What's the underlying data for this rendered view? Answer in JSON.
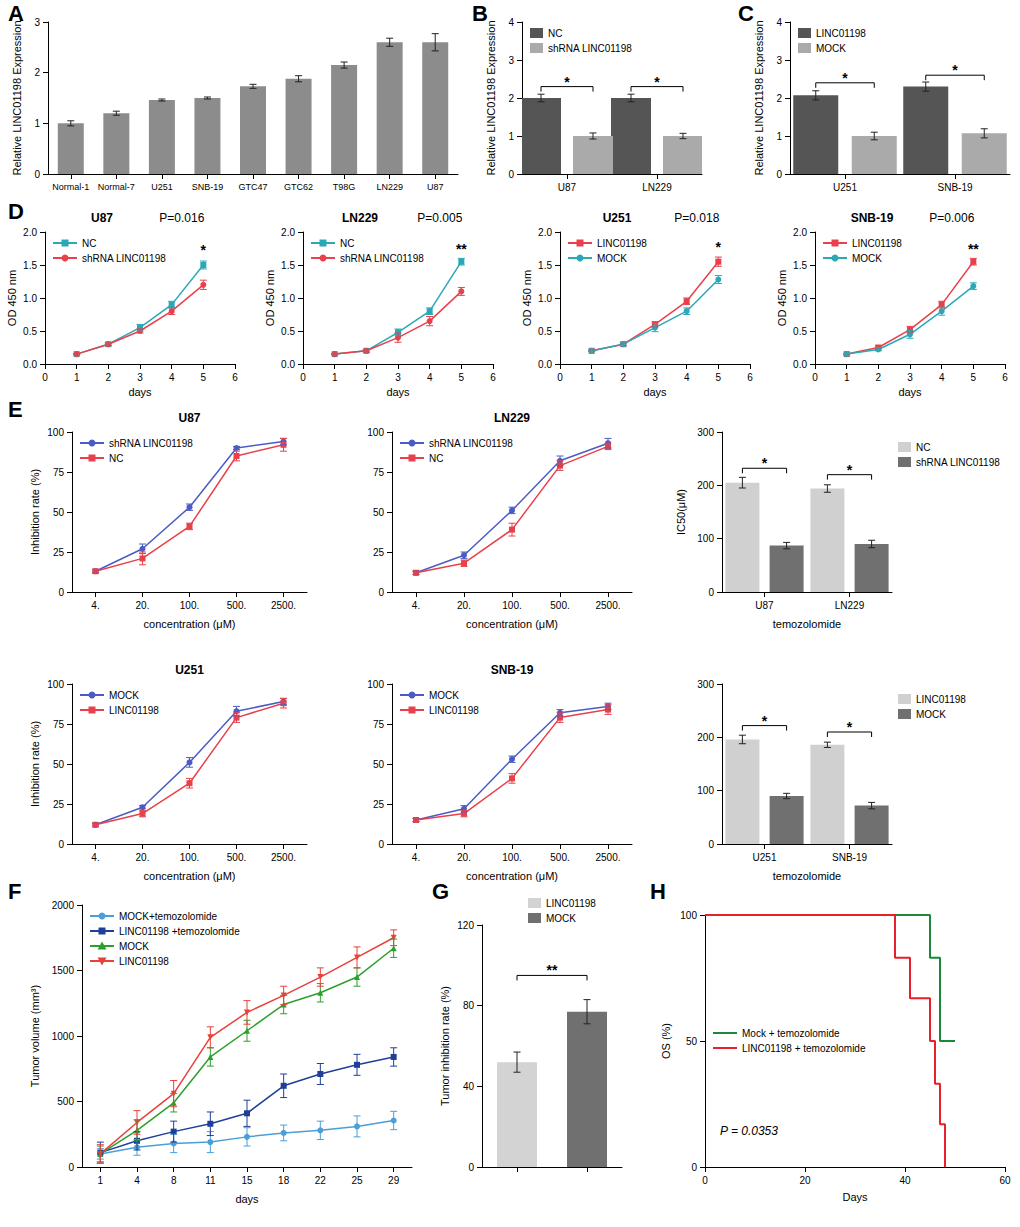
{
  "chart_data": [
    {
      "panel": "A",
      "type": "bar",
      "y_label": "Relative LINC01198 Expression",
      "categories": [
        "Normal-1",
        "Normal-7",
        "U251",
        "SNB-19",
        "GTC47",
        "GTC62",
        "T98G",
        "LN229",
        "U87"
      ],
      "values": [
        1.0,
        1.2,
        1.46,
        1.5,
        1.73,
        1.88,
        2.15,
        2.6,
        2.6
      ],
      "errors": [
        0.05,
        0.04,
        0.02,
        0.02,
        0.04,
        0.06,
        0.06,
        0.08,
        0.17
      ],
      "color": "#8c8c8c",
      "ylim": [
        0,
        3
      ],
      "yticks": [
        0,
        1,
        2,
        3
      ]
    },
    {
      "panel": "B",
      "type": "bar",
      "y_label": "Relative LINC01198 Expression",
      "categories": [
        "U87",
        "LN229"
      ],
      "legend": "upper left",
      "series": [
        {
          "name": "NC",
          "color": "#555555",
          "values": [
            2.0,
            2.0
          ],
          "errors": [
            0.1,
            0.1
          ]
        },
        {
          "name": "shRNA LINC01198",
          "color": "#aaaaaa",
          "values": [
            1.0,
            1.0
          ],
          "errors": [
            0.08,
            0.07
          ]
        }
      ],
      "ylim": [
        0,
        4
      ],
      "yticks": [
        0,
        1,
        2,
        3,
        4
      ],
      "annotations": [
        {
          "text": "*",
          "category": "U87",
          "y": 2.3
        },
        {
          "text": "*",
          "category": "LN229",
          "y": 2.3
        }
      ]
    },
    {
      "panel": "C",
      "type": "bar",
      "y_label": "Relative LINC01198 Expression",
      "categories": [
        "U251",
        "SNB-19"
      ],
      "legend": "upper left",
      "series": [
        {
          "name": "LINC01198",
          "color": "#555555",
          "values": [
            2.07,
            2.3
          ],
          "errors": [
            0.12,
            0.12
          ]
        },
        {
          "name": "MOCK",
          "color": "#aaaaaa",
          "values": [
            1.0,
            1.07
          ],
          "errors": [
            0.1,
            0.12
          ]
        }
      ],
      "ylim": [
        0,
        4
      ],
      "yticks": [
        0,
        1,
        2,
        3,
        4
      ],
      "annotations": [
        {
          "text": "*",
          "category": "U251",
          "y": 2.4
        },
        {
          "text": "*",
          "category": "SNB-19",
          "y": 2.6
        }
      ]
    },
    {
      "panel": "D",
      "type": "line",
      "title": "U87",
      "subtitle": "P=0.016",
      "x_label": "days",
      "y_label": "OD 450 nm",
      "x": [
        1,
        2,
        3,
        4,
        5
      ],
      "xlim": [
        0,
        6
      ],
      "xticks": [
        0,
        1,
        2,
        3,
        4,
        5,
        6
      ],
      "ylim": [
        0,
        2
      ],
      "yticks": [
        {
          "value": 0,
          "label": "0.0"
        },
        0.5,
        {
          "value": 1,
          "label": "1.0"
        },
        1.5,
        {
          "value": 2,
          "label": "2.0"
        }
      ],
      "legend": "upper left",
      "series": [
        {
          "name": "NC",
          "color": "#2aa8b8",
          "marker": "square",
          "values": [
            0.15,
            0.3,
            0.55,
            0.9,
            1.5
          ],
          "errors": [
            0.01,
            0.02,
            0.05,
            0.05,
            0.06
          ]
        },
        {
          "name": "shRNA LINC01198",
          "color": "#e8414b",
          "marker": "circle",
          "values": [
            0.15,
            0.3,
            0.5,
            0.8,
            1.2
          ],
          "errors": [
            0.01,
            0.02,
            0.03,
            0.05,
            0.07
          ]
        }
      ],
      "annotations": [
        {
          "text": "*",
          "x": 5,
          "y": 1.62
        }
      ]
    },
    {
      "type": "line",
      "title": "LN229",
      "subtitle": "P=0.005",
      "x_label": "days",
      "y_label": "OD 450 nm",
      "x": [
        1,
        2,
        3,
        4,
        5
      ],
      "xlim": [
        0,
        6
      ],
      "xticks": [
        0,
        1,
        2,
        3,
        4,
        5,
        6
      ],
      "ylim": [
        0,
        2
      ],
      "yticks": [
        {
          "value": 0,
          "label": "0.0"
        },
        0.5,
        {
          "value": 1,
          "label": "1.0"
        },
        1.5,
        {
          "value": 2,
          "label": "2.0"
        }
      ],
      "legend": "upper left",
      "series": [
        {
          "name": "NC",
          "color": "#2aa8b8",
          "marker": "square",
          "values": [
            0.15,
            0.2,
            0.48,
            0.8,
            1.55
          ],
          "errors": [
            0.01,
            0.02,
            0.05,
            0.05,
            0.05
          ]
        },
        {
          "name": "shRNA LINC01198",
          "color": "#e8414b",
          "marker": "circle",
          "values": [
            0.15,
            0.2,
            0.4,
            0.65,
            1.1
          ],
          "errors": [
            0.01,
            0.02,
            0.07,
            0.07,
            0.06
          ]
        }
      ],
      "annotations": [
        {
          "text": "**",
          "x": 5,
          "y": 1.64
        }
      ]
    },
    {
      "type": "line",
      "title": "U251",
      "subtitle": "P=0.018",
      "x_label": "days",
      "x": [
        1,
        2,
        3,
        4,
        5
      ],
      "xlim": [
        0,
        6
      ],
      "xticks": [
        0,
        1,
        2,
        3,
        4,
        5,
        6
      ],
      "ylim": [
        0,
        2
      ],
      "yticks": [
        {
          "value": 0,
          "label": "0.0"
        },
        0.5,
        {
          "value": 1,
          "label": "1.0"
        },
        1.5,
        {
          "value": 2,
          "label": "2.0"
        }
      ],
      "legend": "upper left",
      "y_label": "OD 450 nm",
      "series": [
        {
          "name": "LINC01198",
          "color": "#e8414b",
          "marker": "square",
          "values": [
            0.2,
            0.3,
            0.6,
            0.95,
            1.55
          ],
          "errors": [
            0.01,
            0.02,
            0.04,
            0.05,
            0.07
          ]
        },
        {
          "name": "MOCK",
          "color": "#2aa8b8",
          "marker": "circle",
          "values": [
            0.2,
            0.3,
            0.55,
            0.8,
            1.28
          ],
          "errors": [
            0.01,
            0.02,
            0.06,
            0.05,
            0.06
          ]
        }
      ],
      "annotations": [
        {
          "text": "*",
          "x": 5,
          "y": 1.66
        }
      ]
    },
    {
      "type": "line",
      "title": "SNB-19",
      "subtitle": "P=0.006",
      "x_label": "days",
      "y_label": "OD 450 nm",
      "x": [
        1,
        2,
        3,
        4,
        5
      ],
      "xlim": [
        0,
        6
      ],
      "xticks": [
        0,
        1,
        2,
        3,
        4,
        5,
        6
      ],
      "ylim": [
        0,
        2
      ],
      "yticks": [
        {
          "value": 0,
          "label": "0.0"
        },
        0.5,
        {
          "value": 1,
          "label": "1.0"
        },
        1.5,
        {
          "value": 2,
          "label": "2.0"
        }
      ],
      "legend": "upper left",
      "series": [
        {
          "name": "LINC01198",
          "color": "#e8414b",
          "marker": "square",
          "values": [
            0.15,
            0.25,
            0.52,
            0.9,
            1.55
          ],
          "errors": [
            0.01,
            0.02,
            0.05,
            0.05,
            0.05
          ]
        },
        {
          "name": "MOCK",
          "color": "#2aa8b8",
          "marker": "circle",
          "values": [
            0.15,
            0.22,
            0.45,
            0.8,
            1.18
          ],
          "errors": [
            0.01,
            0.02,
            0.06,
            0.06,
            0.05
          ]
        }
      ],
      "annotations": [
        {
          "text": "**",
          "x": 5,
          "y": 1.64
        }
      ]
    },
    {
      "panel": "E",
      "type": "line",
      "title": "U87",
      "x_label": "concentration (μM)",
      "y_label": "Inhibition rate (%)",
      "categories": [
        "4.",
        "20.",
        "100.",
        "500.",
        "2500."
      ],
      "ylim": [
        0,
        100
      ],
      "yticks": [
        0,
        25,
        50,
        75,
        100
      ],
      "legend": "upper left",
      "series": [
        {
          "name": "shRNA LINC01198",
          "color": "#4b5cc4",
          "marker": "circle",
          "values": [
            13,
            27,
            53,
            90,
            94
          ],
          "errors": [
            1,
            3,
            2,
            1,
            2
          ]
        },
        {
          "name": "NC",
          "color": "#e8414b",
          "marker": "square",
          "values": [
            13,
            21,
            41,
            85,
            92
          ],
          "errors": [
            1,
            4,
            2,
            3,
            4
          ]
        }
      ]
    },
    {
      "type": "line",
      "title": "LN229",
      "x_label": "concentration (μM)",
      "categories": [
        "4.",
        "20.",
        "100.",
        "500.",
        "2500."
      ],
      "ylim": [
        0,
        100
      ],
      "yticks": [
        0,
        25,
        50,
        75,
        100
      ],
      "legend": "upper left",
      "series": [
        {
          "name": "shRNA LINC01198",
          "color": "#4b5cc4",
          "marker": "circle",
          "values": [
            12,
            23,
            51,
            82,
            93
          ],
          "errors": [
            1,
            2,
            2,
            3,
            3
          ]
        },
        {
          "name": "NC",
          "color": "#e8414b",
          "marker": "square",
          "values": [
            12,
            18,
            39,
            79,
            91
          ],
          "errors": [
            1,
            2,
            4,
            3,
            2
          ]
        }
      ]
    },
    {
      "type": "bar",
      "x_label": "temozolomide",
      "y_label": "IC50(μM)",
      "categories": [
        "U87",
        "LN229"
      ],
      "legend": "upper right",
      "ylim": [
        0,
        300
      ],
      "yticks": [
        0,
        100,
        200,
        300
      ],
      "series": [
        {
          "name": "NC",
          "color": "#d0d0d0",
          "values": [
            205,
            194
          ],
          "errors": [
            10,
            7
          ]
        },
        {
          "name": "shRNA LINC01198",
          "color": "#707070",
          "values": [
            87,
            90
          ],
          "errors": [
            6,
            7
          ]
        }
      ],
      "annotations": [
        {
          "text": "*",
          "category": "U87",
          "y": 232
        },
        {
          "text": "*",
          "category": "LN229",
          "y": 220
        }
      ]
    },
    {
      "type": "line",
      "title": "U251",
      "x_label": "concentration (μM)",
      "y_label": "Inhibition rate (%)",
      "categories": [
        "4.",
        "20.",
        "100.",
        "500.",
        "2500."
      ],
      "ylim": [
        0,
        100
      ],
      "yticks": [
        0,
        25,
        50,
        75,
        100
      ],
      "legend": "upper left",
      "series": [
        {
          "name": "MOCK",
          "color": "#4b5cc4",
          "marker": "circle",
          "values": [
            12,
            23,
            51,
            83,
            89
          ],
          "errors": [
            1,
            1,
            3,
            3,
            2
          ]
        },
        {
          "name": "LINC01198",
          "color": "#e8414b",
          "marker": "square",
          "values": [
            12,
            19,
            38,
            79,
            88
          ],
          "errors": [
            1,
            2,
            3,
            3,
            3
          ]
        }
      ]
    },
    {
      "type": "line",
      "title": "SNB-19",
      "x_label": "concentration (μM)",
      "categories": [
        "4.",
        "20.",
        "100.",
        "500.",
        "2500."
      ],
      "ylim": [
        0,
        100
      ],
      "yticks": [
        0,
        25,
        50,
        75,
        100
      ],
      "legend": "upper left",
      "series": [
        {
          "name": "MOCK",
          "color": "#4b5cc4",
          "marker": "circle",
          "values": [
            15,
            22,
            53,
            82,
            86
          ],
          "errors": [
            1,
            2,
            2,
            2,
            2
          ]
        },
        {
          "name": "LINC01198",
          "color": "#e8414b",
          "marker": "square",
          "values": [
            15,
            19,
            41,
            79,
            84
          ],
          "errors": [
            1,
            2,
            3,
            3,
            3
          ]
        }
      ]
    },
    {
      "type": "bar",
      "x_label": "temozolomide",
      "categories": [
        "U251",
        "SNB-19"
      ],
      "legend": "upper right",
      "ylim": [
        0,
        300
      ],
      "yticks": [
        0,
        100,
        200,
        300
      ],
      "series": [
        {
          "name": "LINC01198",
          "color": "#d0d0d0",
          "values": [
            196,
            186
          ],
          "errors": [
            8,
            5
          ]
        },
        {
          "name": "MOCK",
          "color": "#707070",
          "values": [
            90,
            72
          ],
          "errors": [
            5,
            6
          ]
        }
      ],
      "annotations": [
        {
          "text": "*",
          "category": "U251",
          "y": 222
        },
        {
          "text": "*",
          "category": "SNB-19",
          "y": 210
        }
      ]
    },
    {
      "panel": "F",
      "type": "line",
      "x_label": "days",
      "y_label": "Tumor volume (mm³)",
      "categories": [
        "1",
        "4",
        "8",
        "11",
        "15",
        "18",
        "22",
        "25",
        "29"
      ],
      "ylim": [
        0,
        2000
      ],
      "yticks": [
        0,
        500,
        1000,
        1500,
        2000
      ],
      "legend": "upper left",
      "series": [
        {
          "name": "MOCK+temozolomide",
          "color": "#4a9fd8",
          "marker": "circle",
          "values": [
            100,
            150,
            180,
            190,
            230,
            260,
            280,
            310,
            355
          ],
          "errors": [
            40,
            60,
            70,
            80,
            70,
            60,
            70,
            80,
            70
          ]
        },
        {
          "name": "LINC01198 +temozolomide",
          "color": "#1f3f99",
          "marker": "square",
          "values": [
            110,
            200,
            270,
            330,
            410,
            620,
            710,
            780,
            840
          ],
          "errors": [
            80,
            70,
            80,
            90,
            100,
            90,
            80,
            80,
            70
          ]
        },
        {
          "name": "MOCK",
          "color": "#2ca02c",
          "marker": "triangle",
          "values": [
            100,
            280,
            490,
            840,
            1040,
            1240,
            1330,
            1450,
            1670
          ],
          "errors": [
            60,
            80,
            70,
            70,
            80,
            70,
            70,
            70,
            70
          ]
        },
        {
          "name": "LINC01198",
          "color": "#e8413b",
          "marker": "triangle-down",
          "values": [
            100,
            340,
            560,
            990,
            1180,
            1310,
            1450,
            1600,
            1750
          ],
          "errors": [
            70,
            90,
            100,
            80,
            90,
            70,
            70,
            80,
            60
          ]
        }
      ]
    },
    {
      "panel": "G",
      "type": "bar",
      "y_label": "Tumor inhibition rate (%)",
      "stacked": true,
      "categories": [
        null,
        null
      ],
      "legend": "upper right",
      "ylim": [
        0,
        120
      ],
      "yticks": [
        0,
        40,
        80,
        120
      ],
      "series": [
        {
          "name": "LINC01198",
          "color": "#d3d3d3",
          "values": [
            52,
            null
          ],
          "errors": [
            5,
            null
          ]
        },
        {
          "name": "MOCK",
          "color": "#707070",
          "values": [
            null,
            77
          ],
          "errors": [
            null,
            6
          ]
        }
      ],
      "annotations": [
        {
          "text": "**",
          "y": 95
        }
      ]
    },
    {
      "panel": "H",
      "type": "step",
      "x_label": "Days",
      "y_label": "OS (%)",
      "xlim": [
        0,
        60
      ],
      "xticks": [
        0,
        20,
        40,
        60
      ],
      "ylim": [
        0,
        100
      ],
      "yticks": [
        0,
        50,
        100
      ],
      "legend": "center left",
      "series": [
        {
          "name": "Mock + temozolomide",
          "color": "#1a8a3a",
          "x": [
            0,
            45,
            47,
            50
          ],
          "values": [
            100,
            83,
            50,
            50
          ]
        },
        {
          "name": "LINC01198 + temozolomide",
          "color": "#e8202a",
          "x": [
            0,
            38,
            41,
            45,
            46,
            47,
            48
          ],
          "values": [
            100,
            83,
            67,
            50,
            33,
            17,
            0
          ]
        }
      ],
      "annotations": [
        {
          "text": "P = 0.0353",
          "x": 3,
          "y": 12
        }
      ]
    }
  ]
}
